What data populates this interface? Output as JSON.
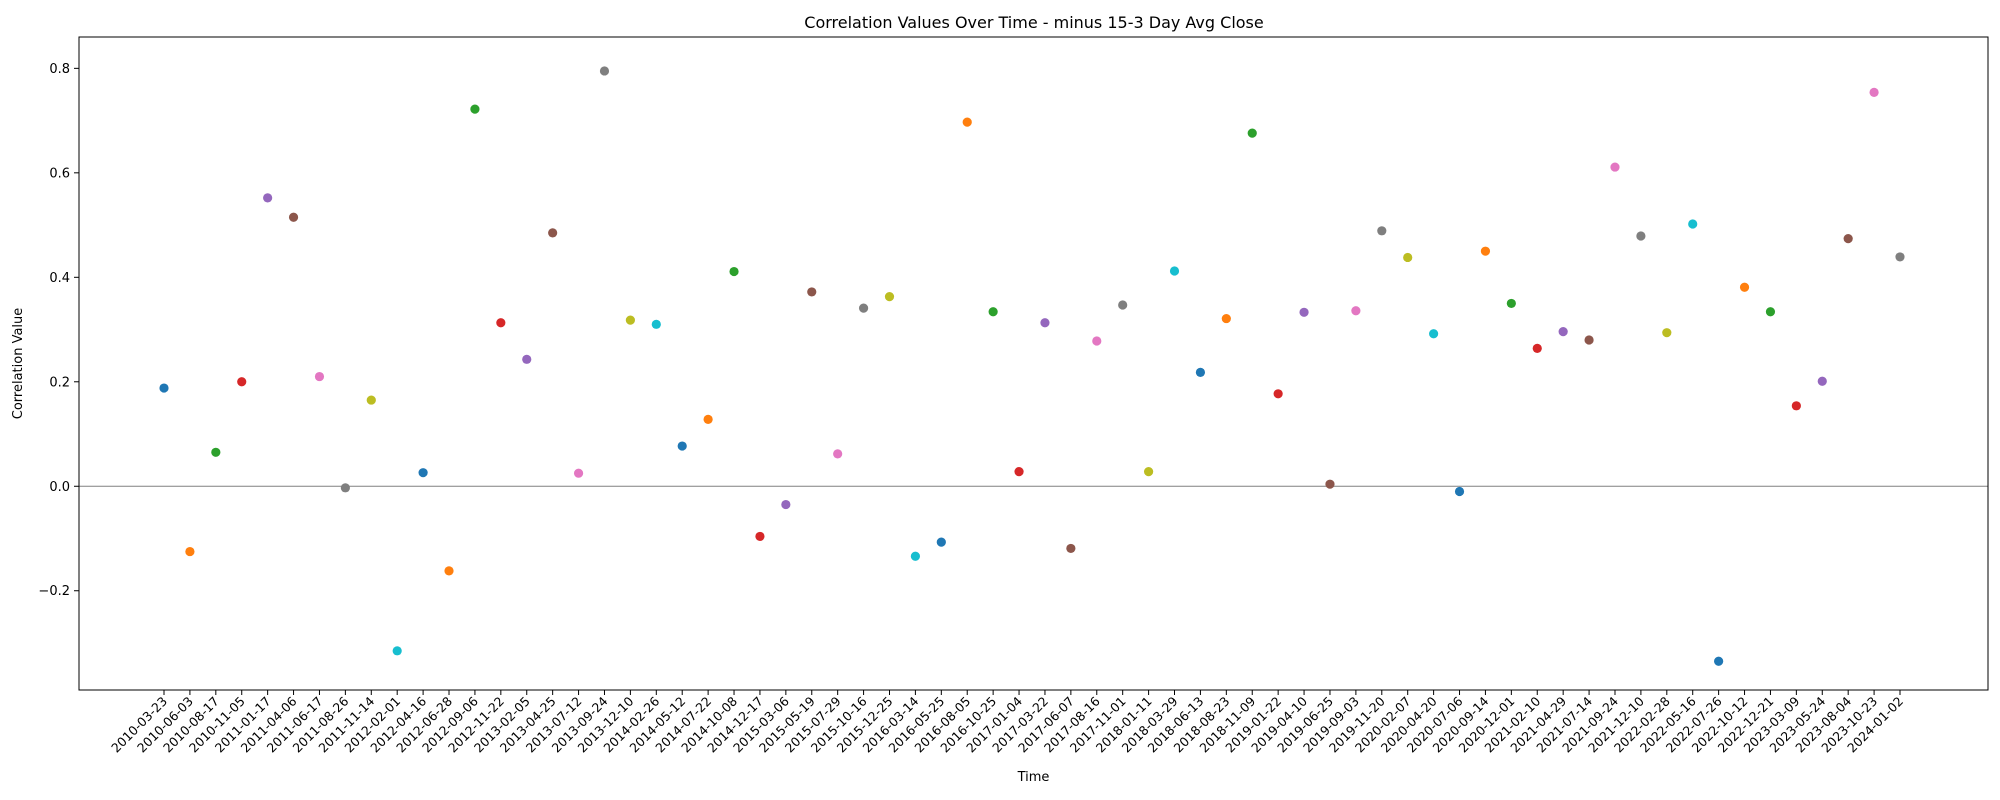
{
  "chart_data": {
    "type": "scatter",
    "title": "Correlation Values Over Time - minus 15-3 Day Avg Close",
    "xlabel": "Time",
    "ylabel": "Correlation Value",
    "ylim": [
      -0.39,
      0.86
    ],
    "yticks": [
      -0.2,
      0.0,
      0.2,
      0.4,
      0.6,
      0.8
    ],
    "ytick_labels": [
      "−0.2",
      "0.0",
      "0.2",
      "0.4",
      "0.6",
      "0.8"
    ],
    "reference_line": 0.0,
    "grid": false,
    "legend": "none",
    "colors": [
      "#1f77b4",
      "#ff7f0e",
      "#2ca02c",
      "#d62728",
      "#9467bd",
      "#8c564b",
      "#e377c2",
      "#7f7f7f",
      "#bcbd22",
      "#17becf"
    ],
    "x": [
      "2010-03-23",
      "2010-06-03",
      "2010-08-17",
      "2010-11-05",
      "2011-01-17",
      "2011-04-06",
      "2011-06-17",
      "2011-08-26",
      "2011-11-14",
      "2012-02-01",
      "2012-04-16",
      "2012-06-28",
      "2012-09-06",
      "2012-11-22",
      "2013-02-05",
      "2013-04-25",
      "2013-07-12",
      "2013-09-24",
      "2013-12-10",
      "2014-02-26",
      "2014-05-12",
      "2014-07-22",
      "2014-10-08",
      "2014-12-17",
      "2015-03-06",
      "2015-05-19",
      "2015-07-29",
      "2015-10-16",
      "2015-12-25",
      "2016-03-14",
      "2016-05-25",
      "2016-08-05",
      "2016-10-25",
      "2017-01-04",
      "2017-03-22",
      "2017-06-07",
      "2017-08-16",
      "2017-11-01",
      "2018-01-11",
      "2018-03-29",
      "2018-06-13",
      "2018-08-23",
      "2018-11-09",
      "2019-01-22",
      "2019-04-10",
      "2019-06-25",
      "2019-09-03",
      "2019-11-20",
      "2020-02-07",
      "2020-04-20",
      "2020-07-06",
      "2020-09-14",
      "2020-12-01",
      "2021-02-10",
      "2021-04-29",
      "2021-07-14",
      "2021-09-24",
      "2021-12-10",
      "2022-02-28",
      "2022-05-16",
      "2022-07-26",
      "2022-10-12",
      "2022-12-21",
      "2023-03-09",
      "2023-05-24",
      "2023-08-04",
      "2023-10-23",
      "2024-01-02"
    ],
    "y": [
      0.188,
      -0.125,
      0.065,
      0.2,
      0.552,
      0.515,
      0.21,
      -0.003,
      0.165,
      -0.315,
      0.026,
      -0.162,
      0.722,
      0.313,
      0.243,
      0.485,
      0.025,
      0.795,
      0.318,
      0.31,
      0.077,
      0.128,
      0.411,
      -0.096,
      -0.035,
      0.372,
      0.062,
      0.341,
      0.363,
      -0.134,
      -0.107,
      0.697,
      0.334,
      0.028,
      0.313,
      -0.119,
      0.278,
      0.347,
      0.028,
      0.412,
      0.218,
      0.321,
      0.676,
      0.177,
      0.333,
      0.004,
      0.336,
      0.489,
      0.438,
      0.292,
      -0.01,
      0.45,
      0.35,
      0.264,
      0.296,
      0.28,
      0.611,
      0.479,
      0.294,
      0.502,
      -0.335,
      0.381,
      0.334,
      0.154,
      0.201,
      0.474,
      0.754,
      0.439
    ]
  }
}
